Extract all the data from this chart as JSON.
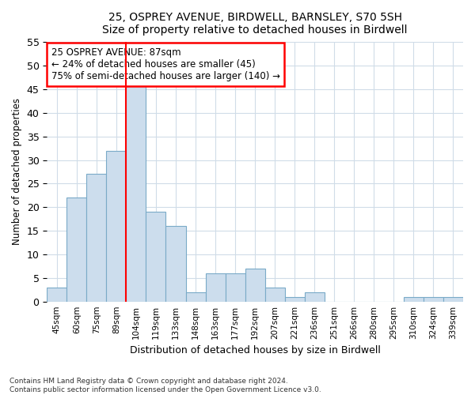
{
  "title1": "25, OSPREY AVENUE, BIRDWELL, BARNSLEY, S70 5SH",
  "title2": "Size of property relative to detached houses in Birdwell",
  "xlabel": "Distribution of detached houses by size in Birdwell",
  "ylabel": "Number of detached properties",
  "categories": [
    "45sqm",
    "60sqm",
    "75sqm",
    "89sqm",
    "104sqm",
    "119sqm",
    "133sqm",
    "148sqm",
    "163sqm",
    "177sqm",
    "192sqm",
    "207sqm",
    "221sqm",
    "236sqm",
    "251sqm",
    "266sqm",
    "280sqm",
    "295sqm",
    "310sqm",
    "324sqm",
    "339sqm"
  ],
  "values": [
    3,
    22,
    27,
    32,
    46,
    19,
    16,
    2,
    6,
    6,
    7,
    3,
    1,
    2,
    0,
    0,
    0,
    0,
    1,
    1,
    1
  ],
  "bar_color": "#ccdded",
  "bar_edge_color": "#7aaac8",
  "vline_index": 3.5,
  "vline_color": "red",
  "annotation_line1": "25 OSPREY AVENUE: 87sqm",
  "annotation_line2": "← 24% of detached houses are smaller (45)",
  "annotation_line3": "75% of semi-detached houses are larger (140) →",
  "annotation_box_color": "white",
  "annotation_box_edge": "red",
  "ylim": [
    0,
    55
  ],
  "yticks": [
    0,
    5,
    10,
    15,
    20,
    25,
    30,
    35,
    40,
    45,
    50,
    55
  ],
  "footnote1": "Contains HM Land Registry data © Crown copyright and database right 2024.",
  "footnote2": "Contains public sector information licensed under the Open Government Licence v3.0.",
  "background_color": "#ffffff",
  "plot_background": "#ffffff",
  "grid_color": "#d0dce8"
}
